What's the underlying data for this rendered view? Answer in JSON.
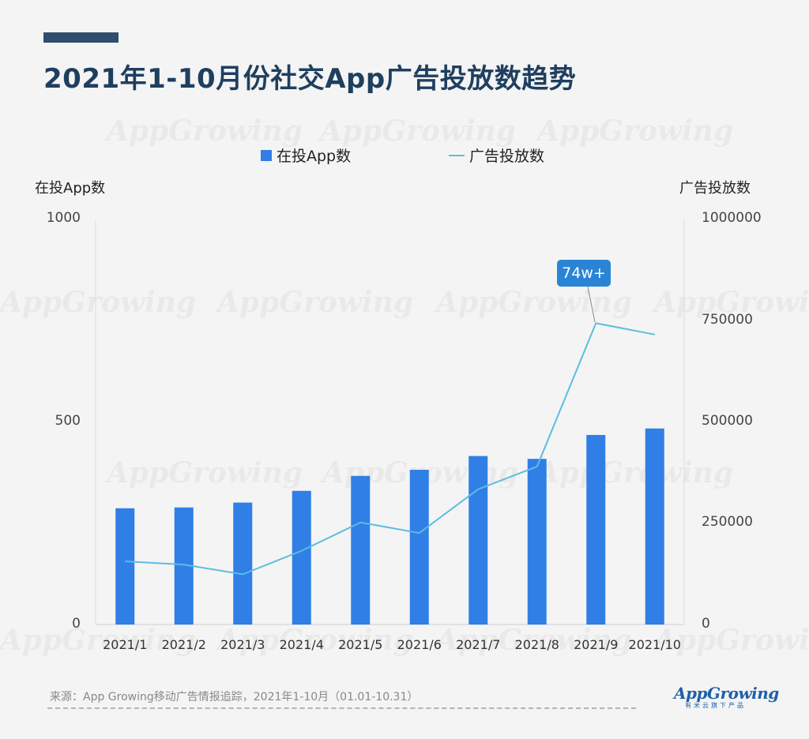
{
  "title": "2021年1-10月份社交App广告投放数趋势",
  "legend": {
    "bar_label": "在投App数",
    "line_label": "广告投放数"
  },
  "axis": {
    "left_title": "在投App数",
    "right_title": "广告投放数"
  },
  "left_ticks": [
    "1000",
    "500",
    "0"
  ],
  "right_ticks": [
    "1000000",
    "750000",
    "500000",
    "250000",
    "0"
  ],
  "callout": "74w+",
  "source": "来源：App Growing移动广告情报追踪，2021年1-10月（01.01-10.31）",
  "logo": {
    "main": "AppGrowing",
    "sub": "有米云旗下产品"
  },
  "watermark_text": "AppGrowing",
  "colors": {
    "bar": "#2f7fe6",
    "line": "#5bbde0",
    "title": "#1f3f5f",
    "accent": "#2e4e6e",
    "callout": "#2a84d6"
  },
  "chart_data": {
    "type": "bar",
    "title": "2021年1-10月份社交App广告投放数趋势",
    "categories": [
      "2021/1",
      "2021/2",
      "2021/3",
      "2021/4",
      "2021/5",
      "2021/6",
      "2021/7",
      "2021/8",
      "2021/9",
      "2021/10"
    ],
    "series": [
      {
        "name": "在投App数",
        "type": "bar",
        "axis": "left",
        "values": [
          287,
          289,
          301,
          330,
          367,
          382,
          416,
          409,
          468,
          484
        ]
      },
      {
        "name": "广告投放数",
        "type": "line",
        "axis": "right",
        "values": [
          156000,
          148000,
          124000,
          182000,
          252000,
          226000,
          334000,
          390000,
          744000,
          716000
        ]
      }
    ],
    "ylabel_left": "在投App数",
    "ylabel_right": "广告投放数",
    "ylim_left": [
      0,
      1000
    ],
    "ylim_right": [
      0,
      1000000
    ],
    "annotation": "74w+",
    "legend_position": "top-center",
    "grid": false
  }
}
